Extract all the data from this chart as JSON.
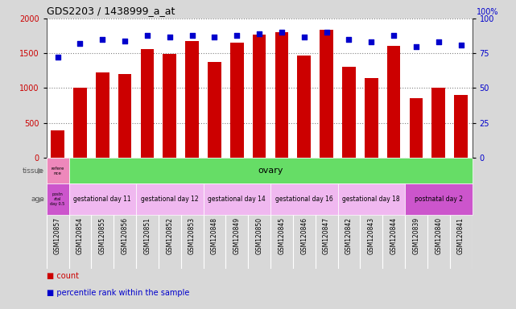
{
  "title": "GDS2203 / 1438999_a_at",
  "samples": [
    "GSM120857",
    "GSM120854",
    "GSM120855",
    "GSM120856",
    "GSM120851",
    "GSM120852",
    "GSM120853",
    "GSM120848",
    "GSM120849",
    "GSM120850",
    "GSM120845",
    "GSM120846",
    "GSM120847",
    "GSM120842",
    "GSM120843",
    "GSM120844",
    "GSM120839",
    "GSM120840",
    "GSM120841"
  ],
  "counts": [
    390,
    1000,
    1220,
    1200,
    1560,
    1490,
    1680,
    1380,
    1650,
    1770,
    1800,
    1470,
    1840,
    1310,
    1140,
    1610,
    850,
    1000,
    900
  ],
  "percentiles": [
    72,
    82,
    85,
    84,
    88,
    87,
    88,
    87,
    88,
    89,
    90,
    87,
    90,
    85,
    83,
    88,
    80,
    83,
    81
  ],
  "bar_color": "#cc0000",
  "dot_color": "#0000cc",
  "ylim_left": [
    0,
    2000
  ],
  "ylim_right": [
    0,
    100
  ],
  "yticks_left": [
    0,
    500,
    1000,
    1500,
    2000
  ],
  "yticks_right": [
    0,
    25,
    50,
    75,
    100
  ],
  "grid_color": "#808080",
  "plot_bg": "#ffffff",
  "fig_bg": "#d8d8d8",
  "tissue_row": {
    "label": "tissue",
    "first_cell_text": "refere\nnce",
    "first_cell_color": "#ee88bb",
    "rest_text": "ovary",
    "rest_color": "#66dd66"
  },
  "age_row": {
    "label": "age",
    "first_cell_text": "postn\natal\nday 0.5",
    "first_cell_color": "#cc55cc",
    "groups": [
      {
        "text": "gestational day 11",
        "count": 3,
        "color": "#f0b8f0"
      },
      {
        "text": "gestational day 12",
        "count": 3,
        "color": "#f0b8f0"
      },
      {
        "text": "gestational day 14",
        "count": 3,
        "color": "#f0b8f0"
      },
      {
        "text": "gestational day 16",
        "count": 3,
        "color": "#f0b8f0"
      },
      {
        "text": "gestational day 18",
        "count": 3,
        "color": "#f0b8f0"
      },
      {
        "text": "postnatal day 2",
        "count": 3,
        "color": "#cc55cc"
      }
    ]
  },
  "legend_count_color": "#cc0000",
  "legend_dot_color": "#0000cc",
  "xticklabel_bg": "#d0d0d0",
  "xticklabel_fontsize": 5.5,
  "bar_width": 0.6
}
